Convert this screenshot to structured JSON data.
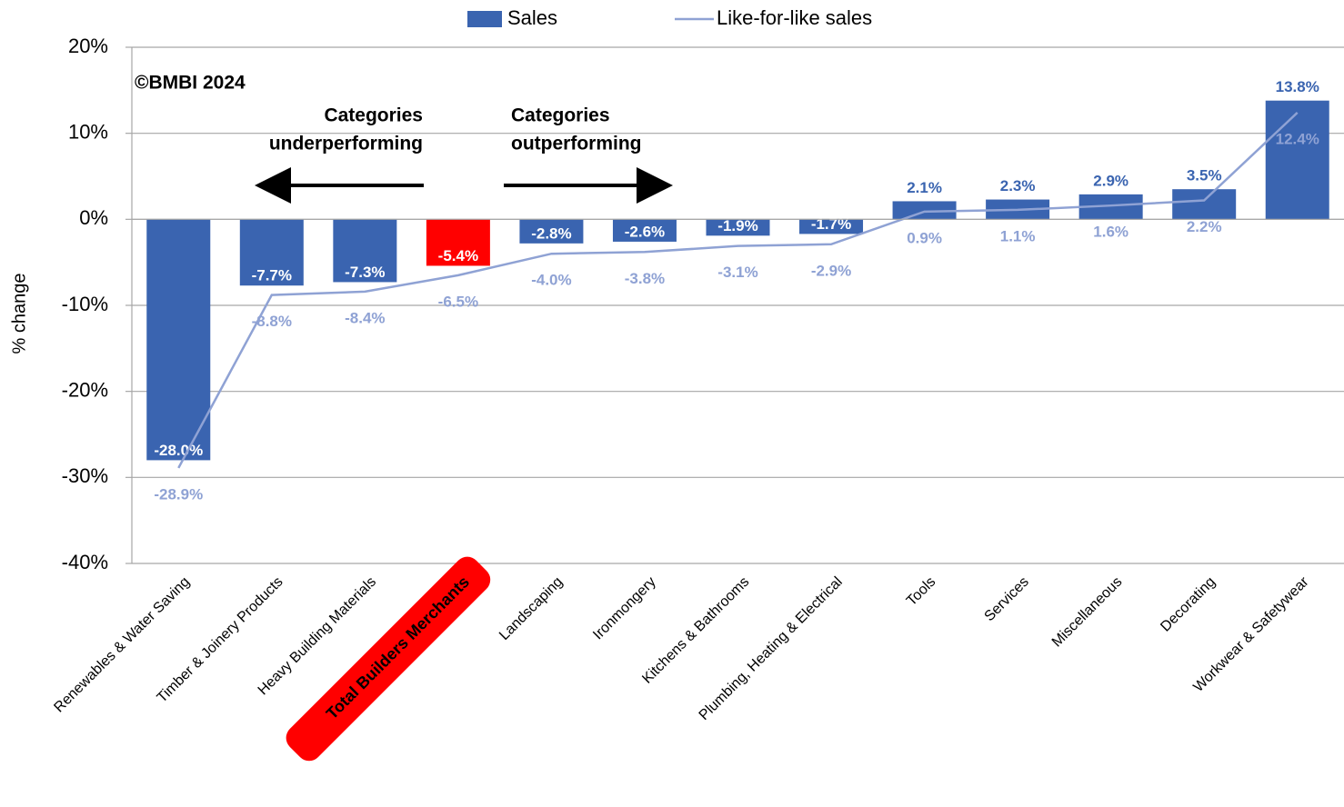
{
  "chart_data": {
    "type": "bar_line",
    "y_label": "% change",
    "annotations": [
      "©BMBI 2024",
      "Categories",
      "underperforming",
      "Categories",
      "outperforming"
    ],
    "categories": [
      "Renewables & Water Saving",
      "Timber & Joinery Products",
      "Heavy Building Materials",
      "Total Builders Merchants",
      "Landscaping",
      "Ironmongery",
      "Kitchens & Bathrooms",
      "Plumbing, Heating & Electrical",
      "Tools",
      "Services",
      "Miscellaneous",
      "Decorating",
      "Workwear & Safetywear"
    ],
    "highlight_color": "#ff0000",
    "series": [
      {
        "name": "Sales",
        "type": "bar",
        "color": "#3a64b0",
        "colors": [
          "#3a64b0",
          "#3a64b0",
          "#3a64b0",
          "#ff0000",
          "#3a64b0",
          "#3a64b0",
          "#3a64b0",
          "#3a64b0",
          "#3a64b0",
          "#3a64b0",
          "#3a64b0",
          "#3a64b0",
          "#3a64b0"
        ],
        "values": [
          -28.0,
          -7.7,
          -7.3,
          -5.4,
          -2.8,
          -2.6,
          -1.9,
          -1.7,
          2.1,
          2.3,
          2.9,
          3.5,
          13.8
        ],
        "value_labels": [
          "-28.0%",
          "-7.7%",
          "-7.3%",
          "-5.4%",
          "-2.8%",
          "-2.6%",
          "-1.9%",
          "-1.7%",
          "2.1%",
          "2.3%",
          "2.9%",
          "3.5%",
          "13.8%"
        ]
      },
      {
        "name": "Like-for-like sales",
        "type": "line",
        "color": "#8fa2d4",
        "values": [
          -28.9,
          -8.8,
          -8.4,
          -6.5,
          -4.0,
          -3.8,
          -3.1,
          -2.9,
          0.9,
          1.1,
          1.6,
          2.2,
          12.4
        ],
        "value_labels": [
          "-28.9%",
          "-8.8%",
          "-8.4%",
          "-6.5%",
          "-4.0%",
          "-3.8%",
          "-3.1%",
          "-2.9%",
          "0.9%",
          "1.1%",
          "1.6%",
          "2.2%",
          "12.4%"
        ]
      }
    ],
    "ylim": [
      -40,
      20
    ],
    "yticks": [
      {
        "value": -40,
        "label": "-40%"
      },
      {
        "value": -30,
        "label": "-30%"
      },
      {
        "value": -20,
        "label": "-20%"
      },
      {
        "value": -10,
        "label": "-10%"
      },
      {
        "value": 0,
        "label": "0%"
      },
      {
        "value": 10,
        "label": "10%"
      },
      {
        "value": 20,
        "label": "20%"
      }
    ],
    "grid": true
  }
}
